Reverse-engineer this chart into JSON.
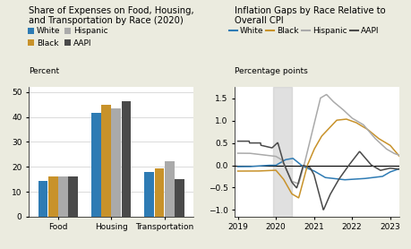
{
  "bar_title": "Share of Expenses on Food, Housing,\nand Transportation by Race (2020)",
  "line_title": "Inflation Gaps by Race Relative to\nOverall CPI",
  "bar_ylabel": "Percent",
  "line_ylabel": "Percentage points",
  "bar_categories": [
    "Food",
    "Housing",
    "Transportation"
  ],
  "bar_races": [
    "White",
    "Black",
    "Hispanic",
    "AAPI"
  ],
  "bar_colors": [
    "#2E7BB4",
    "#C8922A",
    "#AAAAAA",
    "#4A4A4A"
  ],
  "bar_data": {
    "White": [
      14.5,
      41.5,
      18.0
    ],
    "Black": [
      16.0,
      44.8,
      19.3
    ],
    "Hispanic": [
      16.0,
      43.5,
      22.2
    ],
    "AAPI": [
      16.0,
      46.3,
      15.0
    ]
  },
  "bar_ylim": [
    0,
    52
  ],
  "bar_yticks": [
    0,
    10,
    20,
    30,
    40,
    50
  ],
  "line_colors": {
    "White": "#2E7BB4",
    "Black": "#C8922A",
    "Hispanic": "#AAAAAA",
    "AAPI": "#4A4A4A"
  },
  "shaded_region": [
    2019.917,
    2020.417
  ],
  "line_xlim": [
    2018.92,
    2023.25
  ],
  "line_ylim": [
    -1.15,
    1.75
  ],
  "line_yticks": [
    -1.0,
    -0.5,
    0,
    0.5,
    1.0,
    1.5
  ],
  "line_xticks": [
    2019,
    2020,
    2021,
    2022,
    2023
  ],
  "bg_color": "#EBEBDF",
  "panel_bg": "#FFFFFF"
}
